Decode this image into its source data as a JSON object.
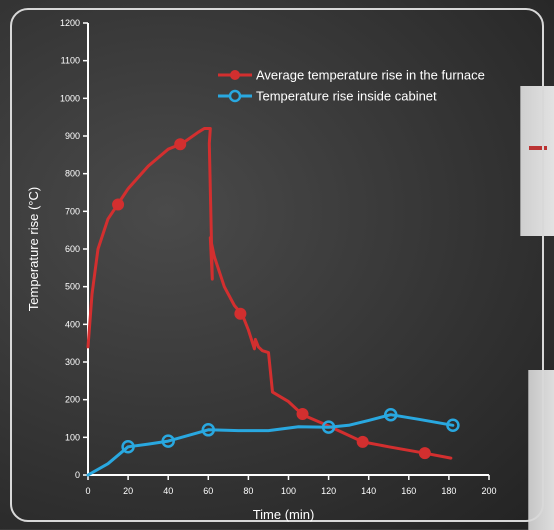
{
  "chart_data": {
    "type": "line",
    "xlabel": "Time (min)",
    "ylabel": "Temperature rise (°C)",
    "xlim": [
      0,
      200
    ],
    "ylim": [
      0,
      1200
    ],
    "x_ticks": [
      "0",
      "20",
      "40",
      "60",
      "80",
      "100",
      "120",
      "140",
      "160",
      "180",
      "200"
    ],
    "y_ticks": [
      "0",
      "100",
      "200",
      "300",
      "400",
      "500",
      "600",
      "700",
      "800",
      "900",
      "1000",
      "1100",
      "1200"
    ],
    "legend_position": "top-right",
    "grid": false,
    "series": [
      {
        "name": "Average temperature rise in the furnace",
        "color": "#d32f2f",
        "marker": "filled-circle",
        "x": [
          0,
          2,
          5,
          10,
          15,
          20,
          30,
          40,
          47,
          55,
          58,
          61,
          60.5,
          62,
          61,
          63,
          68,
          73,
          77,
          80,
          83,
          83.5,
          85,
          87,
          90,
          92,
          100,
          107,
          120,
          137,
          150,
          168,
          181
        ],
        "y": [
          340,
          480,
          600,
          680,
          720,
          760,
          820,
          865,
          880,
          910,
          920,
          920,
          880,
          520,
          630,
          580,
          500,
          450,
          425,
          385,
          335,
          360,
          340,
          330,
          325,
          220,
          195,
          160,
          130,
          88,
          75,
          58,
          45
        ],
        "marker_x": [
          15,
          46,
          76,
          107,
          137,
          168
        ],
        "marker_y": [
          718,
          878,
          428,
          162,
          88,
          58
        ]
      },
      {
        "name": "Temperature rise inside cabinet",
        "color": "#29a8e0",
        "marker": "open-circle",
        "x": [
          0,
          10,
          20,
          30,
          40,
          50,
          60,
          75,
          90,
          105,
          120,
          130,
          140,
          151,
          165,
          182
        ],
        "y": [
          0,
          30,
          75,
          82,
          90,
          105,
          120,
          118,
          118,
          128,
          127,
          132,
          145,
          160,
          148,
          132
        ],
        "marker_x": [
          20,
          40,
          60,
          120,
          151,
          182
        ],
        "marker_y": [
          75,
          90,
          120,
          127,
          160,
          132
        ]
      }
    ]
  }
}
